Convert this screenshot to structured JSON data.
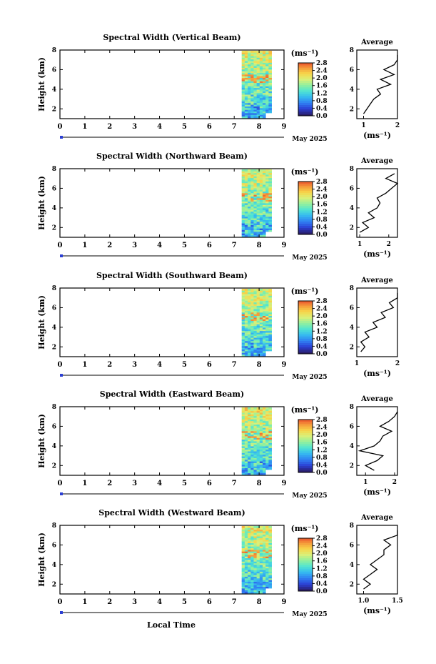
{
  "figure": {
    "xlabel": "Local Time",
    "date_label": "May 2025",
    "unit_label": "(ms⁻¹)",
    "average_title": "Average"
  },
  "colorscale": {
    "stops": [
      "#2a1e6b",
      "#2b3fd4",
      "#2f7df2",
      "#35b7f0",
      "#4ee3d4",
      "#8ef0a0",
      "#d8f07a",
      "#f7d74a",
      "#f59a3a",
      "#e8452a"
    ]
  },
  "chart_data": [
    {
      "type": "heatmap",
      "title": "Spectral Width (Vertical Beam)",
      "ylabel": "Height (km)",
      "xlim": [
        0,
        9
      ],
      "x_ticks": [
        "0",
        "1",
        "2",
        "3",
        "4",
        "5",
        "6",
        "7",
        "8",
        "9"
      ],
      "ylim": [
        1,
        8
      ],
      "y_ticks": [
        "2",
        "4",
        "6",
        "8"
      ],
      "data_time_range": [
        7.3,
        8.5
      ],
      "colorbar_ticks": [
        "0.0",
        "0.4",
        "0.8",
        "1.2",
        "1.6",
        "2.0",
        "2.4",
        "2.8"
      ],
      "average": {
        "xlim": [
          0.8,
          2.0
        ],
        "x_ticks": [
          "1",
          "2"
        ],
        "height_km": [
          1.5,
          2.0,
          2.5,
          3.0,
          3.5,
          4.0,
          4.5,
          5.0,
          5.5,
          6.0,
          6.5,
          7.0,
          7.5
        ],
        "width_ms": [
          1.0,
          1.1,
          1.2,
          1.3,
          1.5,
          1.4,
          1.8,
          1.5,
          1.9,
          1.6,
          1.9,
          2.0,
          2.0
        ]
      }
    },
    {
      "type": "heatmap",
      "title": "Spectral Width (Northward Beam)",
      "ylabel": "Height (km)",
      "xlim": [
        0,
        9
      ],
      "x_ticks": [
        "0",
        "1",
        "2",
        "3",
        "4",
        "5",
        "6",
        "7",
        "8",
        "9"
      ],
      "ylim": [
        1,
        8
      ],
      "y_ticks": [
        "2",
        "4",
        "6",
        "8"
      ],
      "data_time_range": [
        7.3,
        8.5
      ],
      "colorbar_ticks": [
        "0.0",
        "0.4",
        "0.8",
        "1.2",
        "1.6",
        "2.0",
        "2.4",
        "2.8"
      ],
      "average": {
        "xlim": [
          0.9,
          2.3
        ],
        "x_ticks": [
          "1",
          "2"
        ],
        "height_km": [
          1.5,
          2.0,
          2.5,
          3.0,
          3.5,
          4.0,
          4.5,
          5.0,
          5.5,
          6.0,
          6.5,
          7.0,
          7.5
        ],
        "width_ms": [
          1.0,
          1.3,
          1.1,
          1.5,
          1.3,
          1.6,
          1.7,
          1.6,
          1.9,
          2.1,
          2.3,
          1.9,
          2.2
        ]
      }
    },
    {
      "type": "heatmap",
      "title": "Spectral Width (Southward Beam)",
      "ylabel": "Height (km)",
      "xlim": [
        0,
        9
      ],
      "x_ticks": [
        "0",
        "1",
        "2",
        "3",
        "4",
        "5",
        "6",
        "7",
        "8",
        "9"
      ],
      "ylim": [
        1,
        8
      ],
      "y_ticks": [
        "2",
        "4",
        "6",
        "8"
      ],
      "data_time_range": [
        7.3,
        8.5
      ],
      "colorbar_ticks": [
        "0.0",
        "0.4",
        "0.8",
        "1.2",
        "1.6",
        "2.0",
        "2.4",
        "2.8"
      ],
      "average": {
        "xlim": [
          1.0,
          2.0
        ],
        "x_ticks": [
          "1",
          "2"
        ],
        "height_km": [
          1.5,
          2.0,
          2.5,
          3.0,
          3.5,
          4.0,
          4.5,
          5.0,
          5.5,
          6.0,
          6.5,
          7.0,
          7.5
        ],
        "width_ms": [
          1.1,
          1.2,
          1.1,
          1.3,
          1.2,
          1.5,
          1.4,
          1.7,
          1.6,
          1.9,
          1.8,
          2.0,
          2.0
        ]
      }
    },
    {
      "type": "heatmap",
      "title": "Spectral Width (Eastward Beam)",
      "ylabel": "Height (km)",
      "xlim": [
        0,
        9
      ],
      "x_ticks": [
        "0",
        "1",
        "2",
        "3",
        "4",
        "5",
        "6",
        "7",
        "8",
        "9"
      ],
      "ylim": [
        1,
        8
      ],
      "y_ticks": [
        "2",
        "4",
        "6",
        "8"
      ],
      "data_time_range": [
        7.3,
        8.5
      ],
      "colorbar_ticks": [
        "0.0",
        "0.4",
        "0.8",
        "1.2",
        "1.6",
        "2.0",
        "2.4",
        "2.8"
      ],
      "average": {
        "xlim": [
          0.7,
          2.1
        ],
        "x_ticks": [
          "1",
          "2"
        ],
        "height_km": [
          1.5,
          2.0,
          2.5,
          3.0,
          3.5,
          4.0,
          4.5,
          5.0,
          5.5,
          6.0,
          6.5,
          7.0,
          7.5
        ],
        "width_ms": [
          1.3,
          1.0,
          1.4,
          1.6,
          0.8,
          1.3,
          1.5,
          1.6,
          1.9,
          1.5,
          1.8,
          2.0,
          2.1
        ]
      }
    },
    {
      "type": "heatmap",
      "title": "Spectral Width (Westward Beam)",
      "ylabel": "Height (km)",
      "xlim": [
        0,
        9
      ],
      "x_ticks": [
        "0",
        "1",
        "2",
        "3",
        "4",
        "5",
        "6",
        "7",
        "8",
        "9"
      ],
      "ylim": [
        1,
        8
      ],
      "y_ticks": [
        "2",
        "4",
        "6",
        "8"
      ],
      "data_time_range": [
        7.3,
        8.5
      ],
      "colorbar_ticks": [
        "0.0",
        "0.4",
        "0.8",
        "1.2",
        "1.6",
        "2.0",
        "2.4",
        "2.8"
      ],
      "average": {
        "xlim": [
          0.9,
          1.5
        ],
        "x_ticks": [
          "1.0",
          "1.5"
        ],
        "height_km": [
          1.5,
          2.0,
          2.5,
          3.0,
          3.5,
          4.0,
          4.5,
          5.0,
          5.5,
          6.0,
          6.5,
          7.0,
          7.5
        ],
        "width_ms": [
          1.0,
          1.1,
          1.0,
          1.1,
          1.2,
          1.1,
          1.2,
          1.3,
          1.3,
          1.4,
          1.3,
          1.5,
          1.5
        ]
      }
    }
  ]
}
